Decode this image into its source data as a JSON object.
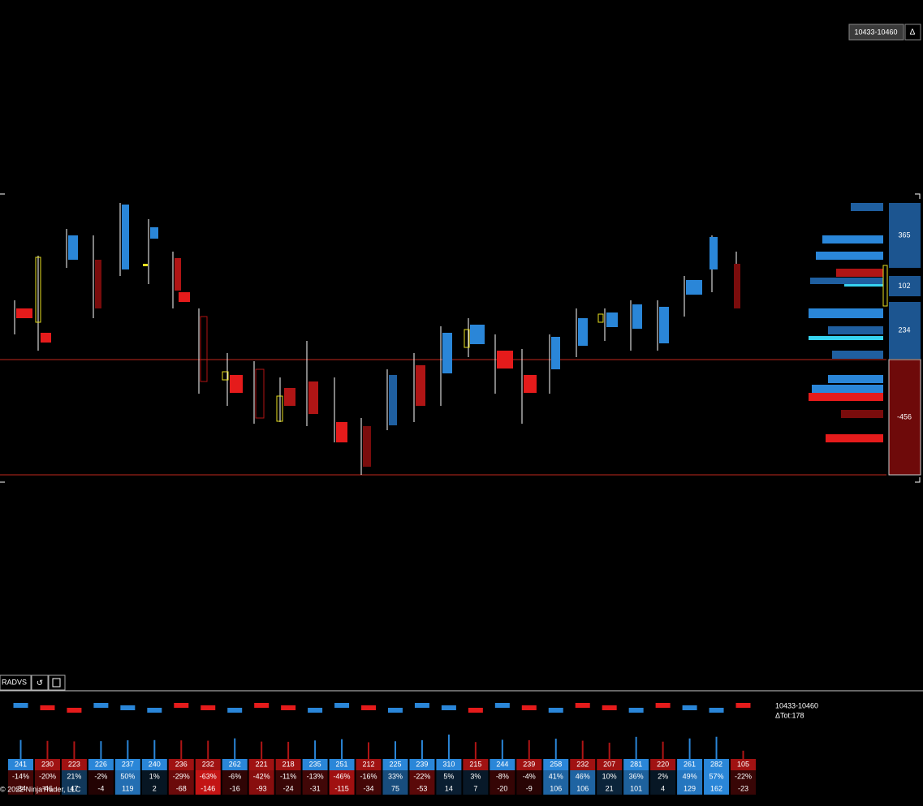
{
  "header": {
    "range_button": "10433-10460",
    "delta_button": "Δ"
  },
  "profile": {
    "boxes": [
      365,
      102,
      234,
      -456
    ]
  },
  "panel": {
    "indicator": "RADVS",
    "range": "10433-10460",
    "delta_total": "ΔTot:178"
  },
  "table": {
    "columns": [
      {
        "total": 241,
        "pct": "-14%",
        "delta": -34,
        "color": "blue"
      },
      {
        "total": 230,
        "pct": "-20%",
        "delta": -46,
        "color": "red"
      },
      {
        "total": 223,
        "pct": "21%",
        "delta": 47,
        "color": "red"
      },
      {
        "total": 226,
        "pct": "-2%",
        "delta": -4,
        "color": "blue"
      },
      {
        "total": 237,
        "pct": "50%",
        "delta": 119,
        "color": "blue"
      },
      {
        "total": 240,
        "pct": "1%",
        "delta": 2,
        "color": "blue"
      },
      {
        "total": 236,
        "pct": "-29%",
        "delta": -68,
        "color": "red"
      },
      {
        "total": 232,
        "pct": "-63%",
        "delta": -146,
        "color": "red"
      },
      {
        "total": 262,
        "pct": "-6%",
        "delta": -16,
        "color": "blue"
      },
      {
        "total": 221,
        "pct": "-42%",
        "delta": -93,
        "color": "red"
      },
      {
        "total": 218,
        "pct": "-11%",
        "delta": -24,
        "color": "red"
      },
      {
        "total": 235,
        "pct": "-13%",
        "delta": -31,
        "color": "blue"
      },
      {
        "total": 251,
        "pct": "-46%",
        "delta": -115,
        "color": "blue"
      },
      {
        "total": 212,
        "pct": "-16%",
        "delta": -34,
        "color": "red"
      },
      {
        "total": 225,
        "pct": "33%",
        "delta": 75,
        "color": "blue"
      },
      {
        "total": 239,
        "pct": "-22%",
        "delta": -53,
        "color": "blue"
      },
      {
        "total": 310,
        "pct": "5%",
        "delta": 14,
        "color": "blue"
      },
      {
        "total": 215,
        "pct": "3%",
        "delta": 7,
        "color": "red"
      },
      {
        "total": 244,
        "pct": "-8%",
        "delta": -20,
        "color": "blue"
      },
      {
        "total": 239,
        "pct": "-4%",
        "delta": -9,
        "color": "red"
      },
      {
        "total": 258,
        "pct": "41%",
        "delta": 106,
        "color": "blue"
      },
      {
        "total": 232,
        "pct": "46%",
        "delta": 106,
        "color": "red"
      },
      {
        "total": 207,
        "pct": "10%",
        "delta": 21,
        "color": "red"
      },
      {
        "total": 281,
        "pct": "36%",
        "delta": 101,
        "color": "blue"
      },
      {
        "total": 220,
        "pct": "2%",
        "delta": 4,
        "color": "red"
      },
      {
        "total": 261,
        "pct": "49%",
        "delta": 129,
        "color": "blue"
      },
      {
        "total": 282,
        "pct": "57%",
        "delta": 162,
        "color": "blue"
      },
      {
        "total": 105,
        "pct": "-22%",
        "delta": -23,
        "color": "red"
      }
    ]
  },
  "footer": {
    "copyright": "© 2022 NinjaTrader, LLC"
  }
}
